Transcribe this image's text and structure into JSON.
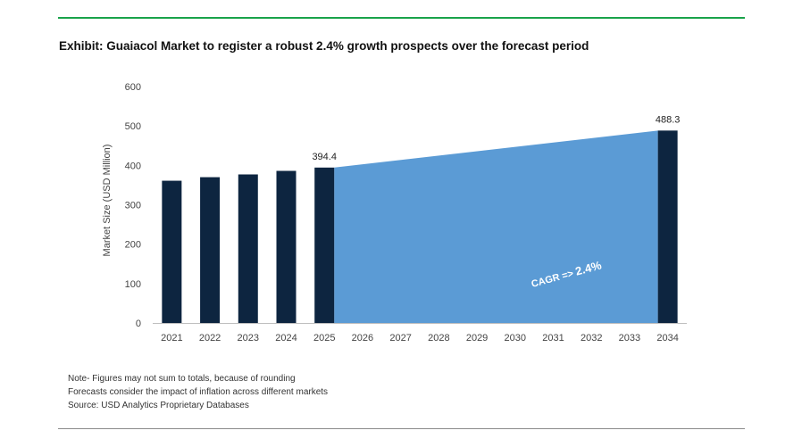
{
  "title": "Exhibit: Guaiacol Market to register a robust 2.4% growth prospects over the forecast period",
  "notes": [
    "Note- Figures may not sum to totals, because of rounding",
    "Forecasts consider the impact of inflation across different markets",
    "Source: USD Analytics Proprietary Databases"
  ],
  "colors": {
    "bar": "#0d2540",
    "area": "#5b9bd5",
    "accent_rule": "#1aa34a",
    "text": "#333333"
  },
  "chart_data": {
    "type": "bar",
    "title": "Exhibit: Guaiacol Market to register a robust 2.4% growth prospects over the forecast period",
    "xlabel": "",
    "ylabel": "Market Size (USD Million)",
    "ylim": [
      0,
      600
    ],
    "yticks": [
      0,
      100,
      200,
      300,
      400,
      500,
      600
    ],
    "categories": [
      "2021",
      "2022",
      "2023",
      "2024",
      "2025",
      "2026",
      "2027",
      "2028",
      "2029",
      "2030",
      "2031",
      "2032",
      "2033",
      "2034"
    ],
    "bars": [
      {
        "x": "2021",
        "value": 361
      },
      {
        "x": "2022",
        "value": 370
      },
      {
        "x": "2023",
        "value": 377
      },
      {
        "x": "2024",
        "value": 386
      },
      {
        "x": "2025",
        "value": 394.4,
        "label": "394.4"
      },
      {
        "x": "2034",
        "value": 488.3,
        "label": "488.3"
      }
    ],
    "area": {
      "from": "2025",
      "to": "2034",
      "start_value": 394.4,
      "end_value": 488.3
    },
    "annotation": {
      "prefix": "CAGR =>",
      "value": "2.4%"
    },
    "grid": false,
    "legend": "none"
  }
}
